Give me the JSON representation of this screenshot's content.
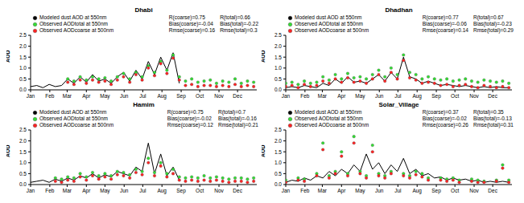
{
  "chart_data": [
    {
      "type": "line",
      "title": "Dhabi",
      "y_label": "AOD",
      "x": [
        1,
        11,
        21,
        31,
        41,
        51,
        61,
        71,
        81,
        91,
        101,
        111,
        121,
        131,
        141,
        151,
        161,
        171,
        181,
        191,
        201,
        211,
        221,
        231,
        241,
        251,
        261,
        271,
        281,
        291,
        301,
        311,
        321,
        331,
        341,
        351,
        361
      ],
      "xlim": [
        1,
        366
      ],
      "xticks": [
        {
          "value": 1,
          "label": "Jan"
        },
        {
          "value": 32,
          "label": "Feb"
        },
        {
          "value": 60,
          "label": "Mar"
        },
        {
          "value": 91,
          "label": "Apr"
        },
        {
          "value": 121,
          "label": "May"
        },
        {
          "value": 152,
          "label": "Jun"
        },
        {
          "value": 182,
          "label": "Jul"
        },
        {
          "value": 213,
          "label": "Aug"
        },
        {
          "value": 244,
          "label": "Sep"
        },
        {
          "value": 274,
          "label": "Oct"
        },
        {
          "value": 305,
          "label": "Nov"
        },
        {
          "value": 335,
          "label": "Dec"
        }
      ],
      "ylim": [
        0,
        2.5
      ],
      "yticks": [
        {
          "value": 0,
          "label": "0.0"
        },
        {
          "value": 0.5,
          "label": "0.5"
        },
        {
          "value": 1,
          "label": "1.0"
        },
        {
          "value": 1.5,
          "label": "1.5"
        },
        {
          "value": 2,
          "label": "2.0"
        },
        {
          "value": 2.5,
          "label": "2.5"
        }
      ],
      "series": [
        {
          "name": "Modeled dust AOD at 550nm",
          "type": "line",
          "color": "#000000",
          "values": [
            0.15,
            0.2,
            0.1,
            0.25,
            0.15,
            0.2,
            0.5,
            0.3,
            0.6,
            0.35,
            0.7,
            0.4,
            0.5,
            0.3,
            0.6,
            0.8,
            0.4,
            0.9,
            0.5,
            1.3,
            0.7,
            1.5,
            0.9,
            1.7,
            0.3,
            null,
            null,
            null,
            null,
            null,
            null,
            null,
            null,
            null,
            null,
            null,
            null
          ]
        },
        {
          "name": "Observed AODtotal at 550nm",
          "type": "scatter",
          "marker": "circle",
          "color": "#33dd33",
          "values": [
            null,
            null,
            null,
            null,
            null,
            null,
            0.5,
            0.4,
            0.6,
            0.45,
            0.6,
            0.5,
            0.55,
            0.4,
            0.6,
            0.75,
            0.5,
            0.8,
            0.6,
            1.1,
            0.8,
            1.3,
            0.9,
            1.6,
            0.6,
            0.4,
            0.5,
            0.35,
            0.4,
            0.45,
            0.3,
            0.4,
            0.35,
            0.5,
            0.3,
            0.4,
            0.35
          ]
        },
        {
          "name": "Observed AODcoarse at 500nm",
          "type": "scatter",
          "marker": "circle",
          "color": "#ff2222",
          "values": [
            null,
            null,
            null,
            null,
            null,
            null,
            0.35,
            0.25,
            0.45,
            0.3,
            0.45,
            0.35,
            0.4,
            0.25,
            0.45,
            0.6,
            0.35,
            0.7,
            0.45,
            1.0,
            0.65,
            1.2,
            0.75,
            1.45,
            0.45,
            0.2,
            0.25,
            0.15,
            0.2,
            0.2,
            0.15,
            0.2,
            0.15,
            0.25,
            0.15,
            0.2,
            0.15
          ]
        }
      ],
      "annotations": [
        [
          "R(coarse)=0.75",
          "R(total)=0.66"
        ],
        [
          "Bias(coarse)=-0.04",
          "Bias(total)=-0.22"
        ],
        [
          "Rmse(coarse)=0.16",
          "Rmse(total)=0.3"
        ]
      ]
    },
    {
      "type": "line",
      "title": "Dhadhan",
      "y_label": "AOD",
      "x": [
        1,
        11,
        21,
        31,
        41,
        51,
        61,
        71,
        81,
        91,
        101,
        111,
        121,
        131,
        141,
        151,
        161,
        171,
        181,
        191,
        201,
        211,
        221,
        231,
        241,
        251,
        261,
        271,
        281,
        291,
        301,
        311,
        321,
        331,
        341,
        351,
        361
      ],
      "xlim": [
        1,
        366
      ],
      "xticks": [
        {
          "value": 1,
          "label": "Jan"
        },
        {
          "value": 32,
          "label": "Feb"
        },
        {
          "value": 60,
          "label": "Mar"
        },
        {
          "value": 91,
          "label": "Apr"
        },
        {
          "value": 121,
          "label": "May"
        },
        {
          "value": 152,
          "label": "Jun"
        },
        {
          "value": 182,
          "label": "Jul"
        },
        {
          "value": 213,
          "label": "Aug"
        },
        {
          "value": 244,
          "label": "Sep"
        },
        {
          "value": 274,
          "label": "Oct"
        },
        {
          "value": 305,
          "label": "Nov"
        },
        {
          "value": 335,
          "label": "Dec"
        }
      ],
      "ylim": [
        0,
        2.5
      ],
      "yticks": [
        {
          "value": 0,
          "label": "0.0"
        },
        {
          "value": 0.5,
          "label": "0.5"
        },
        {
          "value": 1,
          "label": "1.0"
        },
        {
          "value": 1.5,
          "label": "1.5"
        },
        {
          "value": 2,
          "label": "2.0"
        },
        {
          "value": 2.5,
          "label": "2.5"
        }
      ],
      "series": [
        {
          "name": "Modeled dust AOD at 550nm",
          "type": "line",
          "color": "#000000",
          "values": [
            0.1,
            0.15,
            0.1,
            0.2,
            0.15,
            0.1,
            0.3,
            0.2,
            0.5,
            0.3,
            0.6,
            0.35,
            0.4,
            0.3,
            0.5,
            0.7,
            0.4,
            0.8,
            0.5,
            1.5,
            0.6,
            0.5,
            0.3,
            0.4,
            0.3,
            0.2,
            0.25,
            0.2,
            0.15,
            0.2,
            0.15,
            0.1,
            0.15,
            0.1,
            0.15,
            0.1,
            0.1
          ]
        },
        {
          "name": "Observed AODtotal at 550nm",
          "type": "scatter",
          "marker": "circle",
          "color": "#33dd33",
          "values": [
            0.3,
            0.35,
            0.25,
            0.4,
            0.3,
            0.35,
            0.6,
            0.45,
            0.7,
            0.5,
            0.75,
            0.55,
            0.6,
            0.5,
            0.7,
            0.9,
            0.6,
            1.0,
            0.7,
            1.6,
            0.8,
            0.7,
            0.5,
            0.6,
            0.5,
            0.45,
            0.5,
            0.4,
            0.45,
            0.5,
            0.4,
            0.35,
            0.45,
            0.4,
            0.35,
            0.4,
            0.3
          ]
        },
        {
          "name": "Observed AODcoarse at 500nm",
          "type": "scatter",
          "marker": "circle",
          "color": "#ff2222",
          "values": [
            0.15,
            0.2,
            0.1,
            0.25,
            0.15,
            0.2,
            0.4,
            0.3,
            0.5,
            0.35,
            0.55,
            0.35,
            0.4,
            0.3,
            0.5,
            0.7,
            0.4,
            0.8,
            0.5,
            1.35,
            0.55,
            0.45,
            0.3,
            0.35,
            0.3,
            0.2,
            0.25,
            0.15,
            0.2,
            0.25,
            0.15,
            0.1,
            0.2,
            0.15,
            0.1,
            0.15,
            0.1
          ]
        }
      ],
      "annotations": [
        [
          "R(coarse)=0.77",
          "R(total)=0.67"
        ],
        [
          "Bias(coarse)=-0.06",
          "Bias(total)=-0.23"
        ],
        [
          "Rmse(coarse)=0.14",
          "Rmse(total)=0.29"
        ]
      ]
    },
    {
      "type": "line",
      "title": "Hamim",
      "y_label": "AOD",
      "x": [
        1,
        11,
        21,
        31,
        41,
        51,
        61,
        71,
        81,
        91,
        101,
        111,
        121,
        131,
        141,
        151,
        161,
        171,
        181,
        191,
        201,
        211,
        221,
        231,
        241,
        251,
        261,
        271,
        281,
        291,
        301,
        311,
        321,
        331,
        341,
        351,
        361
      ],
      "xlim": [
        1,
        366
      ],
      "xticks": [
        {
          "value": 1,
          "label": "Jan"
        },
        {
          "value": 32,
          "label": "Feb"
        },
        {
          "value": 60,
          "label": "Mar"
        },
        {
          "value": 91,
          "label": "Apr"
        },
        {
          "value": 121,
          "label": "May"
        },
        {
          "value": 152,
          "label": "Jun"
        },
        {
          "value": 182,
          "label": "Jul"
        },
        {
          "value": 213,
          "label": "Aug"
        },
        {
          "value": 244,
          "label": "Sep"
        },
        {
          "value": 274,
          "label": "Oct"
        },
        {
          "value": 305,
          "label": "Nov"
        },
        {
          "value": 335,
          "label": "Dec"
        }
      ],
      "ylim": [
        0,
        2.5
      ],
      "yticks": [
        {
          "value": 0,
          "label": "0.0"
        },
        {
          "value": 0.5,
          "label": "0.5"
        },
        {
          "value": 1,
          "label": "1.0"
        },
        {
          "value": 1.5,
          "label": "1.5"
        },
        {
          "value": 2,
          "label": "2.0"
        },
        {
          "value": 2.5,
          "label": "2.5"
        }
      ],
      "series": [
        {
          "name": "Modeled dust AOD at 550nm",
          "type": "line",
          "color": "#000000",
          "values": [
            0.1,
            0.15,
            0.2,
            0.1,
            0.25,
            0.15,
            0.3,
            0.2,
            0.4,
            0.3,
            0.5,
            0.3,
            0.45,
            0.35,
            0.6,
            0.5,
            0.4,
            0.8,
            0.6,
            1.9,
            0.5,
            1.4,
            0.4,
            0.8,
            0.2,
            null,
            null,
            null,
            null,
            null,
            null,
            null,
            null,
            null,
            null,
            null,
            null
          ]
        },
        {
          "name": "Observed AODtotal at 550nm",
          "type": "scatter",
          "marker": "circle",
          "color": "#33dd33",
          "values": [
            null,
            null,
            null,
            null,
            0.3,
            0.25,
            0.35,
            0.3,
            0.5,
            0.35,
            0.55,
            0.4,
            0.5,
            0.4,
            0.6,
            0.55,
            0.45,
            0.7,
            0.6,
            1.2,
            0.55,
            1.0,
            0.5,
            0.7,
            0.35,
            0.3,
            0.35,
            0.3,
            0.4,
            0.3,
            0.35,
            0.3,
            0.25,
            0.3,
            0.3,
            0.25,
            0.3
          ]
        },
        {
          "name": "Observed AODcoarse at 500nm",
          "type": "scatter",
          "marker": "circle",
          "color": "#ff2222",
          "values": [
            null,
            null,
            null,
            null,
            0.15,
            0.1,
            0.2,
            0.15,
            0.35,
            0.2,
            0.4,
            0.25,
            0.35,
            0.25,
            0.45,
            0.4,
            0.3,
            0.55,
            0.45,
            1.0,
            0.4,
            0.85,
            0.35,
            0.5,
            0.2,
            0.15,
            0.2,
            0.15,
            0.2,
            0.15,
            0.2,
            0.15,
            0.1,
            0.15,
            0.15,
            0.1,
            0.15
          ]
        }
      ],
      "annotations": [
        [
          "R(coarse)=0.75",
          "R(total)=0.7"
        ],
        [
          "Bias(coarse)=-0.02",
          "Bias(total)=-0.16"
        ],
        [
          "Rmse(coarse)=0.12",
          "Rmse(total)=0.21"
        ]
      ]
    },
    {
      "type": "line",
      "title": "Solar_Village",
      "y_label": "AOD",
      "x": [
        1,
        11,
        21,
        31,
        41,
        51,
        61,
        71,
        81,
        91,
        101,
        111,
        121,
        131,
        141,
        151,
        161,
        171,
        181,
        191,
        201,
        211,
        221,
        231,
        241,
        251,
        261,
        271,
        281,
        291,
        301,
        311,
        321,
        331,
        341,
        351,
        361
      ],
      "xlim": [
        1,
        366
      ],
      "xticks": [
        {
          "value": 1,
          "label": "Jan"
        },
        {
          "value": 32,
          "label": "Feb"
        },
        {
          "value": 60,
          "label": "Mar"
        },
        {
          "value": 91,
          "label": "Apr"
        },
        {
          "value": 121,
          "label": "May"
        },
        {
          "value": 152,
          "label": "Jun"
        },
        {
          "value": 182,
          "label": "Jul"
        },
        {
          "value": 213,
          "label": "Aug"
        },
        {
          "value": 244,
          "label": "Sep"
        },
        {
          "value": 274,
          "label": "Oct"
        },
        {
          "value": 305,
          "label": "Nov"
        },
        {
          "value": 335,
          "label": "Dec"
        }
      ],
      "ylim": [
        0,
        2.5
      ],
      "yticks": [
        {
          "value": 0,
          "label": "0.0"
        },
        {
          "value": 0.5,
          "label": "0.5"
        },
        {
          "value": 1,
          "label": "1.0"
        },
        {
          "value": 1.5,
          "label": "1.5"
        },
        {
          "value": 2,
          "label": "2.0"
        },
        {
          "value": 2.5,
          "label": "2.5"
        }
      ],
      "series": [
        {
          "name": "Modeled dust AOD at 550nm",
          "type": "line",
          "color": "#000000",
          "values": [
            0.1,
            0.2,
            0.15,
            0.3,
            0.2,
            0.4,
            0.3,
            0.6,
            0.4,
            0.7,
            0.5,
            0.9,
            0.6,
            1.4,
            0.7,
            1.0,
            0.5,
            0.9,
            0.6,
            1.2,
            0.5,
            0.7,
            0.4,
            0.5,
            0.3,
            0.35,
            0.2,
            0.3,
            0.2,
            0.25,
            0.15,
            0.2,
            0.1,
            0.15,
            0.1,
            0.15,
            0.1
          ]
        },
        {
          "name": "Observed AODtotal at 550nm",
          "type": "scatter",
          "marker": "circle",
          "color": "#33dd33",
          "values": [
            0.2,
            null,
            0.3,
            0.25,
            null,
            0.5,
            1.9,
            0.4,
            0.6,
            1.5,
            0.5,
            2.2,
            0.6,
            0.4,
            1.8,
            0.5,
            0.4,
            0.6,
            null,
            0.5,
            0.4,
            0.6,
            0.5,
            0.3,
            null,
            0.3,
            0.25,
            0.3,
            0.2,
            null,
            0.25,
            0.2,
            0.15,
            null,
            0.2,
            0.9,
            0.2
          ]
        },
        {
          "name": "Observed AODcoarse at 500nm",
          "type": "scatter",
          "marker": "circle",
          "color": "#ff2222",
          "values": [
            0.1,
            null,
            0.2,
            0.15,
            null,
            0.4,
            1.6,
            0.3,
            0.5,
            1.3,
            0.4,
            1.9,
            0.5,
            0.3,
            1.5,
            0.4,
            0.3,
            0.5,
            null,
            0.4,
            0.3,
            0.45,
            0.35,
            0.2,
            null,
            0.2,
            0.15,
            0.2,
            0.1,
            null,
            0.15,
            0.1,
            0.1,
            null,
            0.15,
            0.75,
            0.1
          ]
        }
      ],
      "annotations": [
        [
          "R(coarse)=0.37",
          "R(total)=0.35"
        ],
        [
          "Bias(coarse)=-0.02",
          "Bias(total)=-0.13"
        ],
        [
          "Rmse(coarse)=0.26",
          "Rmse(total)=0.31"
        ]
      ]
    }
  ]
}
